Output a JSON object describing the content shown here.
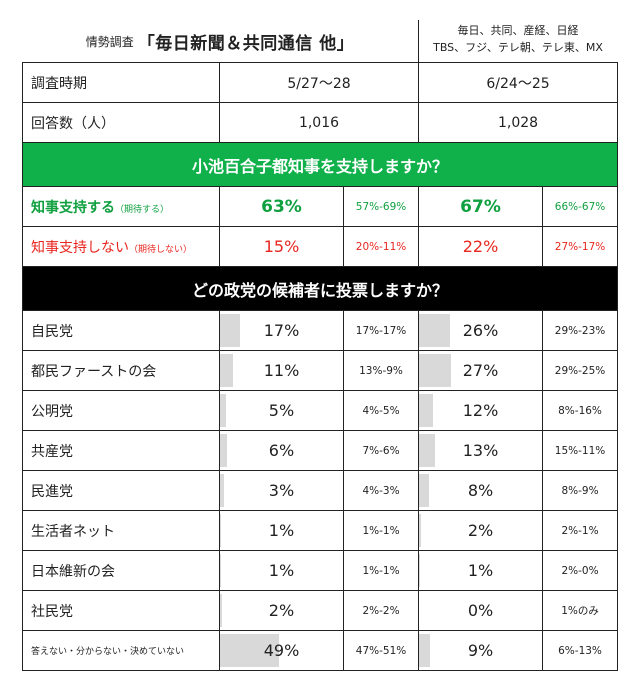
{
  "header": {
    "label_small": "情勢調査",
    "title": "「毎日新聞＆共同通信 他」",
    "sources_line1": "毎日、共同、産経、日経",
    "sources_line2": "TBS、フジ、テレ朝、テレ東、MX"
  },
  "meta": {
    "period_label": "調査時期",
    "period_1": "5/27～28",
    "period_2": "6/24～25",
    "respondents_label": "回答数（人）",
    "respondents_1": "1,016",
    "respondents_2": "1,028"
  },
  "support": {
    "question": "小池百合子都知事を支持しますか？",
    "rows": [
      {
        "label": "知事支持する",
        "note": "（期待する）",
        "v1": "63%",
        "r1": "57%-69%",
        "v2": "67%",
        "r2": "66%-67%"
      },
      {
        "label": "知事支持しない",
        "note": "（期待しない）",
        "v1": "15%",
        "r1": "20%-11%",
        "v2": "22%",
        "r2": "27%-17%"
      }
    ]
  },
  "vote": {
    "question": "どの政党の候補者に投票しますか？",
    "rows": [
      {
        "party": "自民党",
        "v1": "17%",
        "p1": 17,
        "r1": "17%-17%",
        "v2": "26%",
        "p2": 26,
        "r2": "29%-23%"
      },
      {
        "party": "都民ファーストの会",
        "v1": "11%",
        "p1": 11,
        "r1": "13%-9%",
        "v2": "27%",
        "p2": 27,
        "r2": "29%-25%"
      },
      {
        "party": "公明党",
        "v1": "5%",
        "p1": 5,
        "r1": "4%-5%",
        "v2": "12%",
        "p2": 12,
        "r2": "8%-16%"
      },
      {
        "party": "共産党",
        "v1": "6%",
        "p1": 6,
        "r1": "7%-6%",
        "v2": "13%",
        "p2": 13,
        "r2": "15%-11%"
      },
      {
        "party": "民進党",
        "v1": "3%",
        "p1": 3,
        "r1": "4%-3%",
        "v2": "8%",
        "p2": 8,
        "r2": "8%-9%"
      },
      {
        "party": "生活者ネット",
        "v1": "1%",
        "p1": 1,
        "r1": "1%-1%",
        "v2": "2%",
        "p2": 2,
        "r2": "2%-1%"
      },
      {
        "party": "日本維新の会",
        "v1": "1%",
        "p1": 1,
        "r1": "1%-1%",
        "v2": "1%",
        "p2": 1,
        "r2": "2%-0%"
      },
      {
        "party": "社民党",
        "v1": "2%",
        "p1": 2,
        "r1": "2%-2%",
        "v2": "0%",
        "p2": 0,
        "r2": "1%のみ"
      },
      {
        "party": "答えない・分からない・決めていない",
        "v1": "49%",
        "p1": 49,
        "r1": "47%-51%",
        "v2": "9%",
        "p2": 9,
        "r2": "6%-13%"
      }
    ]
  },
  "colors": {
    "support_band": "#10b04a",
    "vote_band": "#000000",
    "support_text": "#10a040",
    "oppose_text": "#e8261f",
    "bar_fill": "#d9d9d9"
  }
}
